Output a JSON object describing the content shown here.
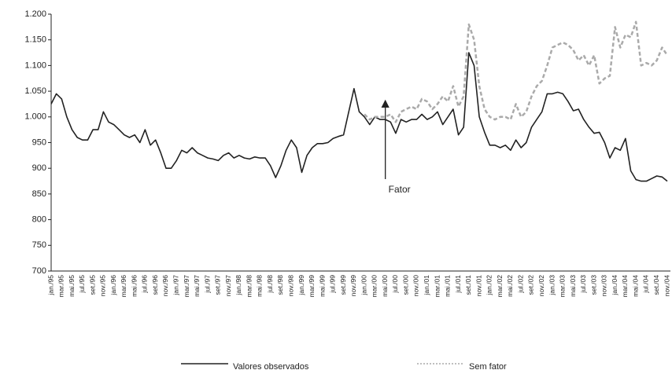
{
  "chart_data": {
    "type": "line",
    "categories": [
      "jan./95",
      null,
      "mar./95",
      null,
      "mai./95",
      null,
      "jul./95",
      null,
      "set./95",
      null,
      "nov./95",
      null,
      "jan./96",
      null,
      "mar./96",
      null,
      "mai./96",
      null,
      "jul./96",
      null,
      "set./96",
      null,
      "nov./96",
      null,
      "jan./97",
      null,
      "mar./97",
      null,
      "mai./97",
      null,
      "jul./97",
      null,
      "set./97",
      null,
      "nov./97",
      null,
      "jan./98",
      null,
      "mar./98",
      null,
      "mai./98",
      null,
      "jul./98",
      null,
      "set./98",
      null,
      "nov./98",
      null,
      "jan./99",
      null,
      "mar./99",
      null,
      "mai./99",
      null,
      "jul./99",
      null,
      "set./99",
      null,
      "nov./99",
      null,
      "jan./00",
      null,
      "mar./00",
      null,
      "mai./00",
      null,
      "jul./00",
      null,
      "set./00",
      null,
      "nov./00",
      null,
      "jan./01",
      null,
      "mar./01",
      null,
      "mai./01",
      null,
      "jul./01",
      null,
      "set./01",
      null,
      "nov./01",
      null,
      "jan./02",
      null,
      "mar./02",
      null,
      "mai./02",
      null,
      "jul./02",
      null,
      "set./02",
      null,
      "nov./02",
      null,
      "jan./03",
      null,
      "mar./03",
      null,
      "mai./03",
      null,
      "jul./03",
      null,
      "set./03",
      null,
      "nov./03",
      null,
      "jan./04",
      null,
      "mar./04",
      null,
      "mai./04",
      null,
      "jul./04",
      null,
      "set./04",
      null,
      "nov./04"
    ],
    "series": [
      {
        "name": "Valores observados",
        "color": "#222222",
        "dash": false,
        "values": [
          1025,
          1045,
          1035,
          1000,
          975,
          960,
          955,
          955,
          975,
          975,
          1010,
          990,
          985,
          975,
          965,
          960,
          965,
          950,
          975,
          945,
          955,
          930,
          900,
          900,
          915,
          935,
          930,
          940,
          930,
          925,
          920,
          918,
          915,
          925,
          930,
          920,
          925,
          920,
          918,
          922,
          920,
          920,
          905,
          882,
          905,
          935,
          955,
          940,
          892,
          925,
          940,
          948,
          948,
          950,
          958,
          962,
          965,
          1010,
          1055,
          1010,
          1000,
          985,
          1000,
          995,
          995,
          990,
          968,
          995,
          990,
          995,
          995,
          1005,
          995,
          1000,
          1010,
          985,
          1000,
          1015,
          965,
          980,
          1125,
          1100,
          1000,
          970,
          945,
          945,
          940,
          945,
          935,
          955,
          940,
          950,
          980,
          995,
          1010,
          1045,
          1045,
          1048,
          1045,
          1030,
          1012,
          1015,
          995,
          980,
          968,
          970,
          950,
          920,
          940,
          935,
          958,
          895,
          878,
          875,
          875,
          880,
          885,
          883,
          875
        ]
      },
      {
        "name": "Sem fator",
        "color": "#aaaaaa",
        "dash": true,
        "values": [
          null,
          null,
          null,
          null,
          null,
          null,
          null,
          null,
          null,
          null,
          null,
          null,
          null,
          null,
          null,
          null,
          null,
          null,
          null,
          null,
          null,
          null,
          null,
          null,
          null,
          null,
          null,
          null,
          null,
          null,
          null,
          null,
          null,
          null,
          null,
          null,
          null,
          null,
          null,
          null,
          null,
          null,
          null,
          null,
          null,
          null,
          null,
          null,
          null,
          null,
          null,
          null,
          null,
          null,
          null,
          null,
          null,
          null,
          null,
          null,
          1005,
          995,
          1000,
          1000,
          1000,
          1005,
          990,
          1010,
          1015,
          1020,
          1015,
          1035,
          1030,
          1015,
          1025,
          1040,
          1030,
          1060,
          1020,
          1040,
          1180,
          1150,
          1060,
          1015,
          1000,
          995,
          1000,
          1000,
          995,
          1025,
          1000,
          1010,
          1040,
          1060,
          1070,
          1100,
          1135,
          1140,
          1145,
          1140,
          1130,
          1110,
          1120,
          1100,
          1120,
          1065,
          1075,
          1080,
          1175,
          1135,
          1160,
          1155,
          1185,
          1100,
          1105,
          1100,
          1110,
          1135,
          1120
        ]
      }
    ],
    "annotations": [
      {
        "text": "Fator"
      }
    ],
    "ylim": [
      700,
      1200
    ],
    "yticks": [
      700,
      750,
      800,
      850,
      900,
      950,
      {
        "value": 1000,
        "label": "1.000"
      },
      {
        "value": 1050,
        "label": "1.050"
      },
      {
        "value": 1100,
        "label": "1.100"
      },
      {
        "value": 1150,
        "label": "1.150"
      },
      {
        "value": 1200,
        "label": "1.200"
      }
    ],
    "grid": false,
    "legend": "bottom"
  }
}
